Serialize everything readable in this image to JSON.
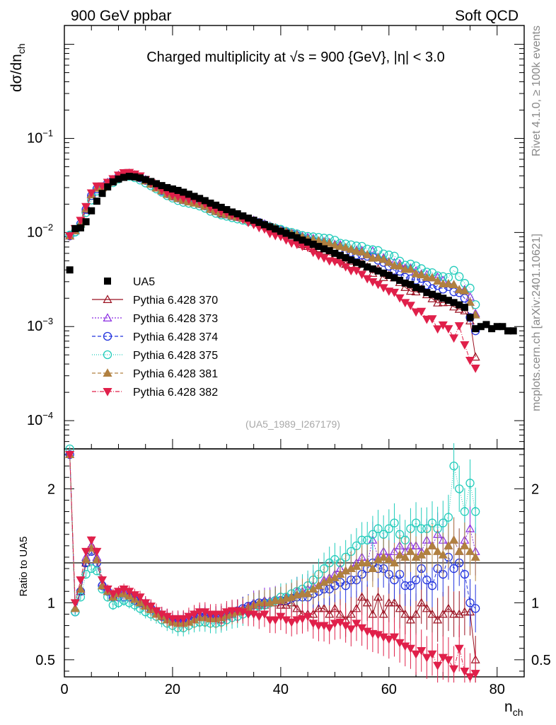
{
  "chart_data": {
    "type": "scatter",
    "header_left": "900 GeV ppbar",
    "header_right": "Soft QCD",
    "title": "Charged multiplicity at √s = 900 {GeV}, |η| < 3.0",
    "ylabel_top": "dσ/dn",
    "ylabel_top_sub": "ch",
    "ylabel_bottom": "Ratio to UA5",
    "xlabel": "n",
    "xlabel_sub": "ch",
    "analysis_tag": "(UA5_1989_I267179)",
    "side_text_top": "Rivet 4.1.0, ≥ 100k events",
    "side_text_bottom": "mcplots.cern.ch [arXiv:2401.10621]",
    "xlim": [
      0,
      85
    ],
    "x_ticks": [
      0,
      20,
      40,
      60,
      80
    ],
    "ylim_top_log10": [
      -4.3,
      0.2
    ],
    "top_tick_labels": [
      {
        "exp": -1,
        "mantissa": "10",
        "sup": "−1"
      },
      {
        "exp": -2,
        "mantissa": "10",
        "sup": "−2"
      },
      {
        "exp": -3,
        "mantissa": "10",
        "sup": "−3"
      },
      {
        "exp": -4,
        "mantissa": "10",
        "sup": "−4"
      }
    ],
    "ylim_ratio": [
      0.35,
      2.35
    ],
    "ratio_ticks": [
      0.5,
      1,
      2
    ],
    "ratio_tick_labels": [
      "0.5",
      "1",
      "2"
    ],
    "data": {
      "name": "UA5",
      "color": "#000000",
      "x": [
        1,
        2,
        3,
        4,
        5,
        6,
        7,
        8,
        9,
        10,
        11,
        12,
        13,
        14,
        15,
        16,
        17,
        18,
        19,
        20,
        21,
        22,
        23,
        24,
        25,
        26,
        27,
        28,
        29,
        30,
        31,
        32,
        33,
        34,
        35,
        36,
        37,
        38,
        39,
        40,
        41,
        42,
        43,
        44,
        45,
        46,
        47,
        48,
        49,
        50,
        51,
        52,
        53,
        54,
        55,
        56,
        57,
        58,
        59,
        60,
        61,
        62,
        63,
        64,
        65,
        66,
        67,
        68,
        69,
        70,
        71,
        72,
        73,
        74,
        75,
        76,
        77,
        78,
        79,
        80,
        81,
        82,
        83
      ],
      "y": [
        0.004,
        0.011,
        0.0112,
        0.013,
        0.017,
        0.0215,
        0.026,
        0.0305,
        0.0345,
        0.037,
        0.0385,
        0.0395,
        0.039,
        0.038,
        0.0365,
        0.0348,
        0.033,
        0.0315,
        0.03,
        0.029,
        0.028,
        0.0268,
        0.0255,
        0.0242,
        0.023,
        0.0218,
        0.0205,
        0.0195,
        0.0185,
        0.0175,
        0.0165,
        0.0158,
        0.015,
        0.0142,
        0.0135,
        0.0128,
        0.0121,
        0.0115,
        0.0109,
        0.0103,
        0.0098,
        0.0093,
        0.0088,
        0.0083,
        0.0079,
        0.0075,
        0.0071,
        0.0067,
        0.0064,
        0.006,
        0.0057,
        0.0054,
        0.0051,
        0.0048,
        0.0046,
        0.0043,
        0.0041,
        0.0039,
        0.0037,
        0.0035,
        0.0033,
        0.0031,
        0.0029,
        0.0028,
        0.0026,
        0.0025,
        0.0023,
        0.0022,
        0.0021,
        0.002,
        0.0019,
        0.0018,
        0.0017,
        0.0016,
        0.00125,
        0.00095,
        0.001,
        0.00105,
        0.00095,
        0.001,
        0.001,
        0.0009,
        0.0009
      ]
    },
    "series": [
      {
        "name": "Pythia 6.428 370",
        "color": "#9b1020",
        "marker": "triangle-open",
        "dash": "",
        "r": [
          2.3,
          0.95,
          1.1,
          1.35,
          1.5,
          1.38,
          1.15,
          1.1,
          1.05,
          1.08,
          1.1,
          1.08,
          1.05,
          1.0,
          0.98,
          0.95,
          0.92,
          0.9,
          0.88,
          0.85,
          0.85,
          0.85,
          0.86,
          0.9,
          0.9,
          0.88,
          0.87,
          0.88,
          0.85,
          0.88,
          0.9,
          0.92,
          0.95,
          0.97,
          0.98,
          0.98,
          0.98,
          1.0,
          1.0,
          0.98,
          0.98,
          1.0,
          0.95,
          0.9,
          0.9,
          0.9,
          0.95,
          0.95,
          0.9,
          0.95,
          0.9,
          0.85,
          0.9,
          0.95,
          1.05,
          1.0,
          0.9,
          1.05,
          0.9,
          1.0,
          1.0,
          0.95,
          0.9,
          0.85,
          0.9,
          1.0,
          0.95,
          0.9,
          0.85,
          0.9,
          0.95,
          0.9,
          0.9,
          0.92,
          0.92,
          0.5
        ]
      },
      {
        "name": "Pythia 6.428 373",
        "color": "#8a2be2",
        "marker": "triangle-open",
        "dash": "2,2",
        "r": [
          2.3,
          0.95,
          1.12,
          1.4,
          1.5,
          1.4,
          1.18,
          1.12,
          1.06,
          1.1,
          1.1,
          1.08,
          1.05,
          1.02,
          1.0,
          0.97,
          0.93,
          0.9,
          0.88,
          0.86,
          0.85,
          0.85,
          0.86,
          0.88,
          0.9,
          0.9,
          0.88,
          0.88,
          0.88,
          0.9,
          0.92,
          0.93,
          0.95,
          0.97,
          1.0,
          1.0,
          1.02,
          1.02,
          1.03,
          1.02,
          1.05,
          1.05,
          1.1,
          1.1,
          1.12,
          1.15,
          1.15,
          1.2,
          1.22,
          1.25,
          1.3,
          1.28,
          1.3,
          1.35,
          1.4,
          1.35,
          1.55,
          1.4,
          1.45,
          1.4,
          1.45,
          1.5,
          1.45,
          1.5,
          1.5,
          1.45,
          1.55,
          1.5,
          1.6,
          1.55,
          1.5,
          1.55,
          1.45,
          1.55,
          1.65,
          1.45
        ]
      },
      {
        "name": "Pythia 6.428 374",
        "color": "#2233dd",
        "marker": "circle-open",
        "dash": "5,3",
        "r": [
          2.3,
          0.92,
          1.1,
          1.35,
          1.45,
          1.35,
          1.15,
          1.1,
          1.05,
          1.05,
          1.05,
          1.05,
          1.02,
          1.0,
          0.98,
          0.95,
          0.92,
          0.88,
          0.86,
          0.84,
          0.83,
          0.83,
          0.85,
          0.87,
          0.88,
          0.88,
          0.87,
          0.87,
          0.88,
          0.9,
          0.92,
          0.93,
          0.95,
          0.97,
          0.98,
          1.0,
          1.0,
          1.0,
          1.02,
          1.02,
          1.02,
          1.04,
          1.05,
          1.05,
          1.05,
          1.08,
          1.1,
          1.12,
          1.12,
          1.15,
          1.18,
          1.15,
          1.2,
          1.2,
          1.25,
          1.3,
          1.35,
          1.3,
          1.3,
          1.25,
          1.2,
          1.25,
          1.15,
          1.15,
          1.2,
          1.3,
          1.2,
          1.15,
          1.3,
          1.25,
          1.4,
          1.3,
          1.35,
          1.25,
          1.0,
          0.95
        ]
      },
      {
        "name": "Pythia 6.428 375",
        "color": "#22ccbb",
        "marker": "circle-open",
        "dash": "1,2",
        "r": [
          2.35,
          0.92,
          1.05,
          1.25,
          1.3,
          1.28,
          1.12,
          1.05,
          0.98,
          1.0,
          1.02,
          1.0,
          0.98,
          0.95,
          0.92,
          0.9,
          0.88,
          0.85,
          0.82,
          0.8,
          0.78,
          0.78,
          0.8,
          0.82,
          0.83,
          0.83,
          0.82,
          0.82,
          0.83,
          0.85,
          0.87,
          0.88,
          0.9,
          0.92,
          0.95,
          0.97,
          0.98,
          1.0,
          1.02,
          1.05,
          1.05,
          1.08,
          1.1,
          1.12,
          1.15,
          1.2,
          1.25,
          1.3,
          1.35,
          1.38,
          1.35,
          1.4,
          1.45,
          1.5,
          1.55,
          1.55,
          1.6,
          1.65,
          1.6,
          1.65,
          1.7,
          1.6,
          1.55,
          1.65,
          1.7,
          1.65,
          1.65,
          1.7,
          1.65,
          1.7,
          1.75,
          2.2,
          2.0,
          1.8,
          2.05,
          1.8
        ]
      },
      {
        "name": "Pythia 6.428 381",
        "color": "#b08040",
        "marker": "triangle-filled",
        "dash": "5,3",
        "r": [
          2.3,
          0.95,
          1.12,
          1.38,
          1.48,
          1.38,
          1.15,
          1.1,
          1.05,
          1.08,
          1.08,
          1.06,
          1.03,
          1.0,
          0.97,
          0.94,
          0.9,
          0.88,
          0.85,
          0.83,
          0.82,
          0.82,
          0.83,
          0.85,
          0.87,
          0.87,
          0.86,
          0.86,
          0.87,
          0.89,
          0.91,
          0.92,
          0.94,
          0.96,
          0.98,
          1.0,
          1.0,
          1.0,
          1.02,
          1.02,
          1.04,
          1.05,
          1.07,
          1.08,
          1.08,
          1.12,
          1.15,
          1.18,
          1.2,
          1.22,
          1.25,
          1.28,
          1.3,
          1.32,
          1.35,
          1.35,
          1.3,
          1.38,
          1.4,
          1.38,
          1.35,
          1.42,
          1.4,
          1.45,
          1.4,
          1.42,
          1.45,
          1.5,
          1.45,
          1.42,
          1.5,
          1.55,
          1.45,
          1.5,
          1.45,
          1.4
        ]
      },
      {
        "name": "Pythia 6.428 382",
        "color": "#e0204a",
        "marker": "triangle-down-filled",
        "dash": "6,2,1,2",
        "r": [
          2.3,
          1.0,
          1.2,
          1.45,
          1.55,
          1.45,
          1.2,
          1.12,
          1.08,
          1.1,
          1.12,
          1.1,
          1.07,
          1.05,
          1.0,
          0.97,
          0.93,
          0.9,
          0.88,
          0.86,
          0.86,
          0.86,
          0.88,
          0.9,
          0.92,
          0.92,
          0.9,
          0.9,
          0.9,
          0.92,
          0.93,
          0.93,
          0.92,
          0.9,
          0.9,
          0.88,
          0.9,
          0.85,
          0.85,
          0.88,
          0.85,
          0.83,
          0.85,
          0.86,
          0.88,
          0.82,
          0.8,
          0.8,
          0.78,
          0.82,
          0.83,
          0.8,
          0.77,
          0.82,
          0.78,
          0.75,
          0.73,
          0.72,
          0.7,
          0.68,
          0.7,
          0.65,
          0.62,
          0.6,
          0.55,
          0.58,
          0.52,
          0.55,
          0.45,
          0.52,
          0.5,
          0.42,
          0.6,
          0.4,
          0.35,
          0.38
        ]
      }
    ]
  }
}
